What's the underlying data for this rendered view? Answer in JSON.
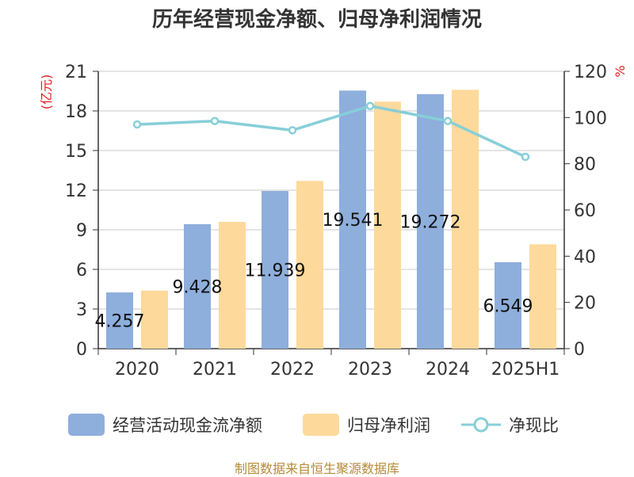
{
  "colors": {
    "cashflow": "#8eaedc",
    "netprofit": "#fdd99b",
    "ratio": "#86cfd8",
    "axis": "#333333",
    "grid": "#c8c8c8",
    "unit_text": "#e02020",
    "source_text": "#b58a3a"
  },
  "chart_data": {
    "type": "bar",
    "title": "历年经营现金净额、归母净利润情况",
    "categories": [
      "2020",
      "2021",
      "2022",
      "2023",
      "2024",
      "2025H1"
    ],
    "series": [
      {
        "name": "经营活动现金流净额",
        "type": "bar",
        "axis": "left",
        "values": [
          4.257,
          9.428,
          11.939,
          19.541,
          19.272,
          6.549
        ],
        "value_labels": [
          "4.257",
          "9.428",
          "11.939",
          "19.541",
          "19.272",
          "6.549"
        ]
      },
      {
        "name": "归母净利润",
        "type": "bar",
        "axis": "left",
        "values": [
          4.4,
          9.6,
          12.7,
          18.7,
          19.6,
          7.9
        ]
      },
      {
        "name": "净现比",
        "type": "line",
        "axis": "right",
        "values": [
          97,
          98.5,
          94.5,
          105,
          98.5,
          83
        ]
      }
    ],
    "y_left": {
      "label": "(亿元)",
      "ylim": [
        0,
        21
      ],
      "ticks": [
        "0",
        "3",
        "6",
        "9",
        "12",
        "15",
        "18",
        "21"
      ]
    },
    "y_right": {
      "label": "%",
      "ylim": [
        0,
        120
      ],
      "ticks": [
        "0",
        "20",
        "40",
        "60",
        "80",
        "100",
        "120"
      ]
    },
    "grid": true,
    "legend_position": "bottom"
  },
  "source": "制图数据来自恒生聚源数据库"
}
